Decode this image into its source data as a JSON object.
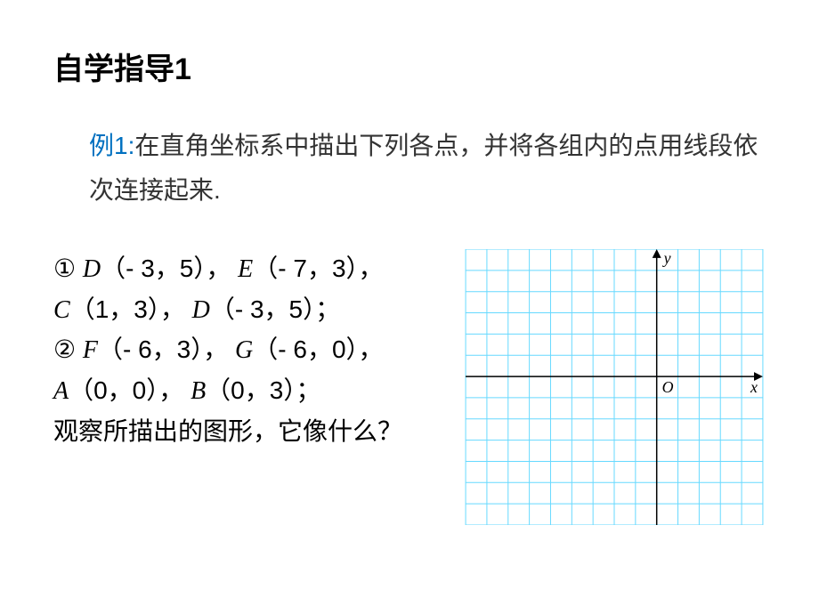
{
  "title": "自学指导1",
  "example_label": "例1:",
  "problem_text": "在直角坐标系中描出下列各点，并将各组内的点用线段依次连接起来.",
  "group1_marker": "①",
  "group1_points": [
    {
      "name": "D",
      "coords": "（- 3，5）"
    },
    {
      "name": "E",
      "coords": "（- 7，3）"
    },
    {
      "name": "C",
      "coords": "（1，3）"
    },
    {
      "name": "D",
      "coords": "（- 3，5）"
    }
  ],
  "group1_sep": "，",
  "group1_end": "；",
  "group2_marker": "②",
  "group2_points": [
    {
      "name": "F",
      "coords": "（- 6，3）"
    },
    {
      "name": "G",
      "coords": "（- 6，0）"
    },
    {
      "name": "A",
      "coords": "（0，0）"
    },
    {
      "name": "B",
      "coords": "（0，3）"
    }
  ],
  "group2_sep": "，",
  "group2_end": "；",
  "question": "观察所描出的图形，它像什么？",
  "chart": {
    "grid_color": "#66d9ff",
    "axis_color": "#000000",
    "background": "#ffffff",
    "cols": 14,
    "rows": 13,
    "cell": 24,
    "origin_col": 9,
    "origin_row": 6,
    "y_label": "y",
    "x_label": "x",
    "o_label": "O",
    "label_color": "#000000",
    "label_fontsize": 18,
    "label_fontstyle": "italic",
    "label_fontfamily": "Times New Roman, serif"
  }
}
